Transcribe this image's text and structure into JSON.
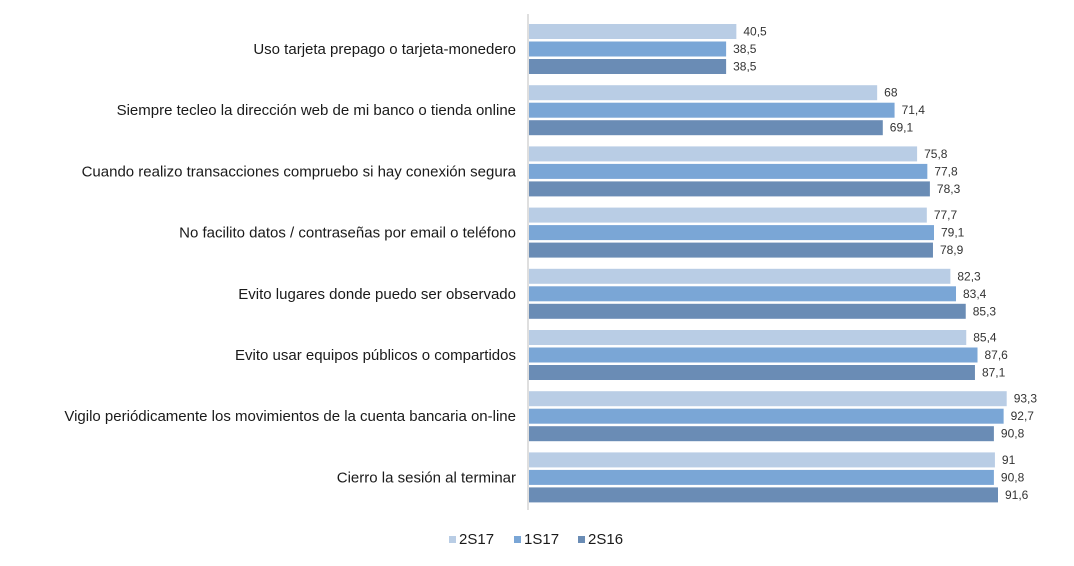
{
  "chart_data": {
    "type": "bar",
    "orientation": "horizontal",
    "categories": [
      "Uso tarjeta prepago o tarjeta-monedero",
      "Siempre tecleo la dirección web de mi banco o tienda online",
      "Cuando realizo transacciones compruebo si hay conexión segura",
      "No facilito datos / contraseñas por email o teléfono",
      "Evito lugares donde puedo ser observado",
      "Evito usar equipos públicos o compartidos",
      "Vigilo periódicamente los movimientos de la cuenta bancaria on-line",
      "Cierro la sesión al terminar"
    ],
    "series": [
      {
        "name": "2S17",
        "color": "#b9cde5",
        "values": [
          40.5,
          68,
          75.8,
          77.7,
          82.3,
          85.4,
          93.3,
          91
        ],
        "labels": [
          "40,5",
          "68",
          "75,8",
          "77,7",
          "82,3",
          "85,4",
          "93,3",
          "91"
        ]
      },
      {
        "name": "1S17",
        "color": "#7aa6d6",
        "values": [
          38.5,
          71.4,
          77.8,
          79.1,
          83.4,
          87.6,
          92.7,
          90.8
        ],
        "labels": [
          "38,5",
          "71,4",
          "77,8",
          "79,1",
          "83,4",
          "87,6",
          "92,7",
          "90,8"
        ]
      },
      {
        "name": "2S16",
        "color": "#6a8cb5",
        "values": [
          38.5,
          69.1,
          78.3,
          78.9,
          85.3,
          87.1,
          90.8,
          91.6
        ],
        "labels": [
          "38,5",
          "69,1",
          "78,3",
          "78,9",
          "85,3",
          "87,1",
          "90,8",
          "91,6"
        ]
      }
    ],
    "xlim": [
      0,
      100
    ],
    "grid": false,
    "legend_position": "bottom"
  }
}
